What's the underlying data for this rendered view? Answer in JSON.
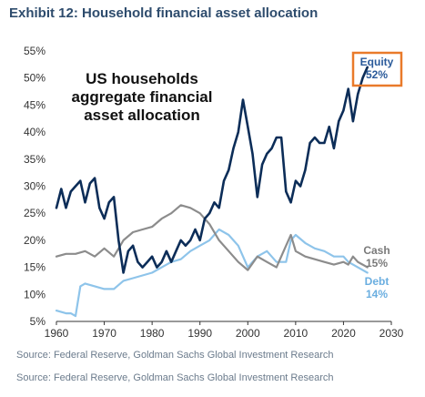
{
  "header": {
    "title": "Exhibit 12: Household financial asset allocation"
  },
  "source_lines": [
    "Source: Federal Reserve, Goldman Sachs Global Investment Research",
    "Source: Federal Reserve, Goldman Sachs Global Investment Research"
  ],
  "colors": {
    "equity": "#0c2d58",
    "cash": "#8c8c8c",
    "debt": "#8ec4ea",
    "highlight_box": "#e97a2a",
    "equity_label": "#2a5a9a",
    "cash_label": "#7a7a7a",
    "debt_label": "#6aaee0"
  },
  "chart_data": {
    "type": "line",
    "title": "US households aggregate financial asset allocation",
    "title_lines": [
      "US households",
      "aggregate financial",
      "asset allocation"
    ],
    "xlabel": "",
    "ylabel": "",
    "xlim": [
      1960,
      2030
    ],
    "ylim": [
      5,
      55
    ],
    "x_ticks": [
      1960,
      1970,
      1980,
      1990,
      2000,
      2010,
      2020,
      2030
    ],
    "x_tick_labels": [
      "1960",
      "1970",
      "1980",
      "1990",
      "2000",
      "2010",
      "2020",
      "2030"
    ],
    "y_ticks": [
      5,
      10,
      15,
      20,
      25,
      30,
      35,
      40,
      45,
      50,
      55
    ],
    "y_tick_labels": [
      "5%",
      "10%",
      "15%",
      "20%",
      "25%",
      "30%",
      "35%",
      "40%",
      "45%",
      "50%",
      "55%"
    ],
    "grid": false,
    "annotations": [
      {
        "series": "Equity",
        "name": "Equity",
        "value": "52%"
      },
      {
        "series": "Cash",
        "name": "Cash",
        "value": "15%"
      },
      {
        "series": "Debt",
        "name": "Debt",
        "value": "14%"
      }
    ],
    "series": [
      {
        "name": "Equity",
        "x": [
          1960,
          1961,
          1962,
          1963,
          1964,
          1965,
          1966,
          1967,
          1968,
          1969,
          1970,
          1971,
          1972,
          1973,
          1974,
          1975,
          1976,
          1977,
          1978,
          1979,
          1980,
          1981,
          1982,
          1983,
          1984,
          1985,
          1986,
          1987,
          1988,
          1989,
          1990,
          1991,
          1992,
          1993,
          1994,
          1995,
          1996,
          1997,
          1998,
          1999,
          2000,
          2001,
          2002,
          2003,
          2004,
          2005,
          2006,
          2007,
          2008,
          2009,
          2010,
          2011,
          2012,
          2013,
          2014,
          2015,
          2016,
          2017,
          2018,
          2019,
          2020,
          2021,
          2022,
          2023,
          2024,
          2025
        ],
        "values": [
          26,
          29.5,
          26,
          29,
          30,
          31,
          27,
          30.5,
          31.5,
          26,
          24,
          27,
          28,
          20,
          14,
          18,
          19,
          16,
          15,
          16,
          17,
          15,
          16,
          18,
          16,
          18,
          20,
          19,
          20,
          22,
          20,
          24,
          25,
          27,
          26,
          31,
          33,
          37,
          40,
          46,
          41,
          36,
          28,
          34,
          36,
          37,
          39,
          39,
          29,
          27,
          31,
          30,
          33,
          38,
          39,
          38,
          38,
          41,
          37,
          42,
          44,
          48,
          42,
          47,
          50,
          52
        ]
      },
      {
        "name": "Cash",
        "x": [
          1960,
          1962,
          1964,
          1966,
          1968,
          1970,
          1972,
          1974,
          1976,
          1978,
          1980,
          1982,
          1984,
          1986,
          1988,
          1990,
          1992,
          1994,
          1996,
          1998,
          2000,
          2002,
          2004,
          2006,
          2008,
          2009,
          2010,
          2012,
          2014,
          2016,
          2018,
          2020,
          2021,
          2022,
          2023,
          2024,
          2025
        ],
        "values": [
          17,
          17.5,
          17.5,
          18,
          17,
          18.5,
          17,
          20,
          21.5,
          22,
          22.5,
          24,
          25,
          26.5,
          26,
          25,
          23,
          20,
          18,
          16,
          14.5,
          17,
          16,
          15,
          19,
          21,
          18,
          17,
          16.5,
          16,
          15.5,
          16,
          15.5,
          17,
          16,
          15.5,
          15
        ]
      },
      {
        "name": "Debt",
        "x": [
          1960,
          1962,
          1963,
          1964,
          1965,
          1966,
          1968,
          1970,
          1972,
          1974,
          1976,
          1978,
          1980,
          1982,
          1984,
          1986,
          1988,
          1990,
          1992,
          1994,
          1996,
          1998,
          2000,
          2002,
          2004,
          2006,
          2008,
          2009,
          2010,
          2012,
          2014,
          2016,
          2018,
          2020,
          2021,
          2022,
          2023,
          2024,
          2025
        ],
        "values": [
          7,
          6.5,
          6.5,
          6,
          11.5,
          12,
          11.5,
          11,
          11,
          12.5,
          13,
          13.5,
          14,
          15,
          16,
          16.5,
          18,
          19,
          20,
          22,
          21,
          19,
          15,
          17,
          18,
          16,
          16,
          20,
          21,
          19.5,
          18.5,
          18,
          17,
          17,
          16,
          15.5,
          15,
          14.5,
          14
        ]
      }
    ]
  }
}
